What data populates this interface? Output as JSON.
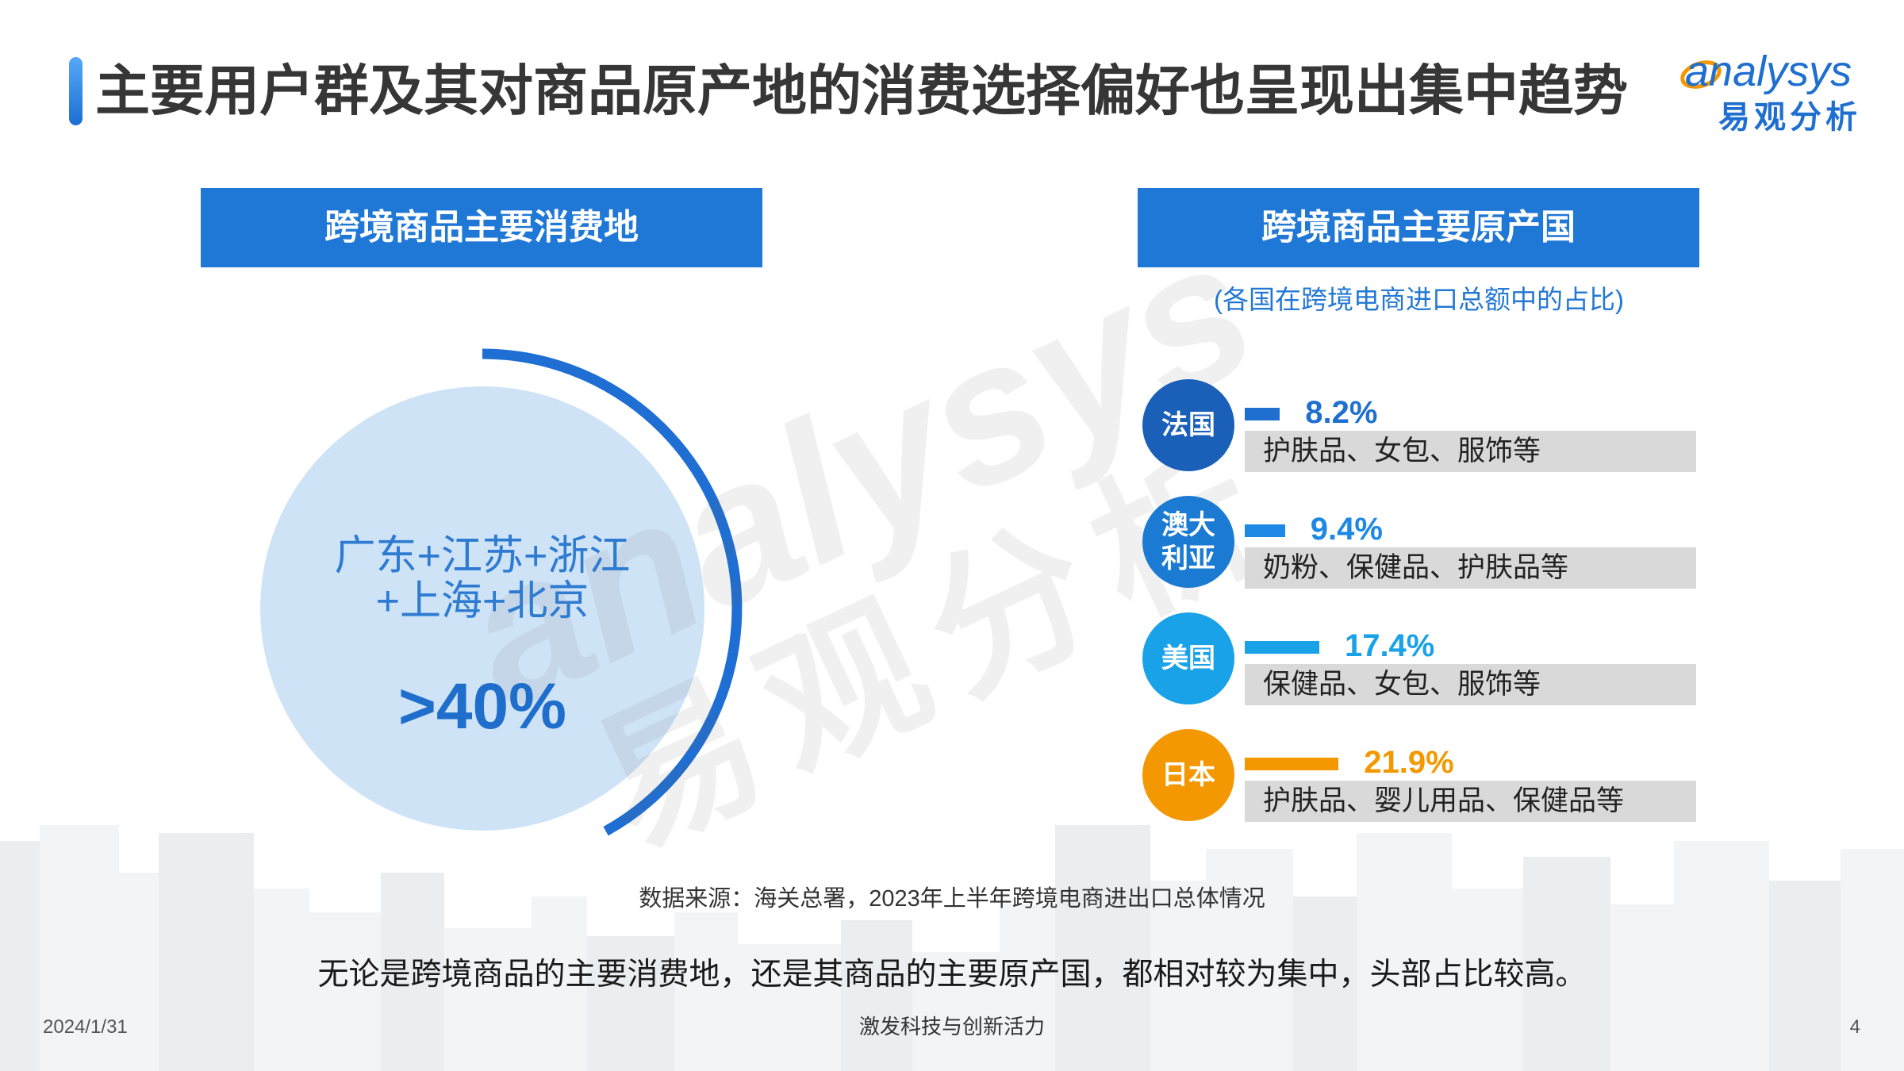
{
  "slide": {
    "title": "主要用户群及其对商品原产地的消费选择偏好也呈现出集中趋势",
    "accent_color": "#1F78D6"
  },
  "logo": {
    "latin": "analysys",
    "cn": "易观分析",
    "blue": "#1E6FD0",
    "orange": "#F39800"
  },
  "watermark": {
    "latin": "analysys",
    "cn": "易观分析"
  },
  "consumption": {
    "heading": "跨境商品主要消费地",
    "regions_line1": "广东+江苏+浙江",
    "regions_line2": "+上海+北京",
    "share_label": ">40%",
    "circle_color": "#CFE3F7",
    "arc_color": "#1F6ED3"
  },
  "source_note": "数据来源：海关总署，2023年上半年跨境电商进出口总体情况",
  "conclusion": "无论是跨境商品的主要消费地，还是其商品的主要原产国，都相对较为集中，头部占比较高。",
  "footer": {
    "date": "2024/1/31",
    "slogan": "激发科技与创新活力",
    "page_number": "4"
  },
  "chart_data": {
    "type": "bar",
    "orientation": "horizontal",
    "title": "跨境商品主要原产国",
    "subtitle": "(各国在跨境电商进口总额中的占比)",
    "categories": [
      "法国",
      "澳大利亚",
      "美国",
      "日本"
    ],
    "values": [
      8.2,
      9.4,
      17.4,
      21.9
    ],
    "unit": "%",
    "value_labels": [
      "8.2%",
      "9.4%",
      "17.4%",
      "21.9%"
    ],
    "descriptions": [
      "护肤品、女包、服饰等",
      "奶粉、保健品、护肤品等",
      "保健品、女包、服饰等",
      "护肤品、婴儿用品、保健品等"
    ],
    "badge_colors": [
      "#1A5FB8",
      "#1B7BD3",
      "#19A2E8",
      "#F39800"
    ],
    "bar_colors": [
      "#1F6FD0",
      "#1E88E5",
      "#19A2E8",
      "#F39800"
    ],
    "grid": false,
    "legend": "none"
  }
}
